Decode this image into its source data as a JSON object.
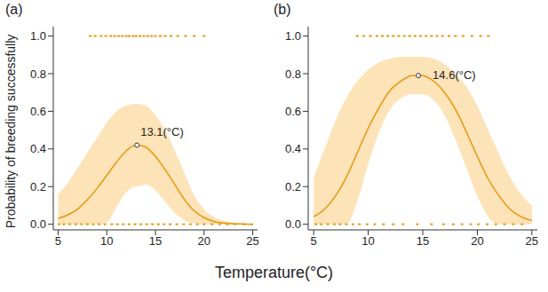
{
  "ylabel": "Probability of breeding successfully",
  "xlabel": "Temperature(°C)",
  "chart_data": [
    {
      "type": "line",
      "title": "(a)",
      "color": "#e8960e",
      "xlim": [
        4.5,
        25.5
      ],
      "xticks": [
        5,
        10,
        15,
        20,
        25
      ],
      "ylim": [
        -0.03,
        1.05
      ],
      "yticks": [
        {
          "value": 0,
          "label": "0.0"
        },
        0.2,
        0.4,
        0.6,
        0.8,
        {
          "value": 1,
          "label": "1.0"
        }
      ],
      "x": [
        5,
        6,
        7,
        8,
        9,
        10,
        11,
        12,
        13,
        13.1,
        14,
        15,
        16,
        17,
        18,
        19,
        20,
        21,
        22,
        23,
        24,
        25
      ],
      "values": [
        0.03,
        0.05,
        0.08,
        0.13,
        0.19,
        0.26,
        0.33,
        0.39,
        0.42,
        0.42,
        0.41,
        0.36,
        0.29,
        0.21,
        0.13,
        0.07,
        0.035,
        0.015,
        0.006,
        0.002,
        0.001,
        0
      ],
      "ci_lower": [
        0,
        0,
        0,
        0,
        0,
        0.01,
        0.09,
        0.17,
        0.2,
        0.2,
        0.21,
        0.18,
        0.12,
        0.06,
        0.02,
        0.005,
        0,
        0,
        0,
        0,
        0,
        0
      ],
      "ci_upper": [
        0.16,
        0.22,
        0.3,
        0.38,
        0.46,
        0.54,
        0.6,
        0.63,
        0.64,
        0.64,
        0.63,
        0.58,
        0.5,
        0.39,
        0.27,
        0.15,
        0.08,
        0.04,
        0.02,
        0.01,
        0.005,
        0.003
      ],
      "annotation": {
        "x": 13.1,
        "y": 0.42,
        "label": "13.1(°C)"
      },
      "observations": {
        "x": [
          8.3,
          8.8,
          9.4,
          9.9,
          10.4,
          10.8,
          11.2,
          11.6,
          12.0,
          12.3,
          12.7,
          13.0,
          13.4,
          13.8,
          14.2,
          14.6,
          15.0,
          15.5,
          16.0,
          16.6,
          17.3,
          18.1,
          19.0,
          20.0,
          5.1,
          5.6,
          6.2,
          6.8,
          7.4,
          8.0,
          8.6,
          9.2,
          9.8,
          10.5,
          11.1,
          11.7,
          12.3,
          12.9,
          13.5,
          14.1,
          14.7,
          15.3,
          15.9,
          16.5,
          17.2,
          17.9,
          18.6,
          19.3,
          20.0,
          20.8,
          21.6,
          22.4,
          23.2,
          24.1,
          24.9
        ],
        "y": [
          1,
          1,
          1,
          1,
          1,
          1,
          1,
          1,
          1,
          1,
          1,
          1,
          1,
          1,
          1,
          1,
          1,
          1,
          1,
          1,
          1,
          1,
          1,
          1,
          0,
          0,
          0,
          0,
          0,
          0,
          0,
          0,
          0,
          0,
          0,
          0,
          0,
          0,
          0,
          0,
          0,
          0,
          0,
          0,
          0,
          0,
          0,
          0,
          0,
          0,
          0,
          0,
          0,
          0,
          0
        ]
      }
    },
    {
      "type": "line",
      "title": "(b)",
      "color": "#e8960e",
      "xlim": [
        4.5,
        25.5
      ],
      "xticks": [
        5,
        10,
        15,
        20,
        25
      ],
      "ylim": [
        -0.03,
        1.05
      ],
      "yticks": [
        {
          "value": 0,
          "label": "0.0"
        },
        0.2,
        0.4,
        0.6,
        0.8,
        {
          "value": 1,
          "label": "1.0"
        }
      ],
      "x": [
        5,
        6,
        7,
        8,
        9,
        10,
        11,
        12,
        13,
        14,
        14.6,
        15,
        16,
        17,
        18,
        19,
        20,
        21,
        22,
        23,
        24,
        25
      ],
      "values": [
        0.04,
        0.08,
        0.15,
        0.25,
        0.38,
        0.51,
        0.62,
        0.71,
        0.76,
        0.79,
        0.79,
        0.79,
        0.76,
        0.7,
        0.61,
        0.49,
        0.36,
        0.24,
        0.15,
        0.08,
        0.04,
        0.02
      ],
      "ci_lower": [
        0,
        0,
        0,
        0,
        0.12,
        0.32,
        0.49,
        0.61,
        0.67,
        0.69,
        0.69,
        0.69,
        0.66,
        0.58,
        0.45,
        0.3,
        0.15,
        0.04,
        0,
        0,
        0,
        0
      ],
      "ci_upper": [
        0.25,
        0.4,
        0.55,
        0.67,
        0.76,
        0.82,
        0.86,
        0.88,
        0.89,
        0.89,
        0.89,
        0.89,
        0.88,
        0.85,
        0.8,
        0.73,
        0.63,
        0.5,
        0.37,
        0.25,
        0.16,
        0.1
      ],
      "annotation": {
        "x": 14.6,
        "y": 0.79,
        "label": "14.6(°C)"
      },
      "observations": {
        "x": [
          9.0,
          9.6,
          10.2,
          10.8,
          11.3,
          11.8,
          12.3,
          12.8,
          13.3,
          13.8,
          14.3,
          14.8,
          15.3,
          15.8,
          16.3,
          16.8,
          17.4,
          18.0,
          18.7,
          19.5,
          20.3,
          21.0,
          5.2,
          5.7,
          6.3,
          6.9,
          7.4,
          8.0,
          8.6,
          9.2,
          9.9,
          10.6,
          11.4,
          12.3,
          13.2,
          14.5,
          15.8,
          16.9,
          17.8,
          18.6,
          19.4,
          20.1,
          20.9,
          21.7,
          22.5,
          23.3,
          24.1
        ],
        "y": [
          1,
          1,
          1,
          1,
          1,
          1,
          1,
          1,
          1,
          1,
          1,
          1,
          1,
          1,
          1,
          1,
          1,
          1,
          1,
          1,
          1,
          1,
          0,
          0,
          0,
          0,
          0,
          0,
          0,
          0,
          0,
          0,
          0,
          0,
          0,
          0,
          0,
          0,
          0,
          0,
          0,
          0,
          0,
          0,
          0,
          0,
          0
        ]
      }
    }
  ]
}
